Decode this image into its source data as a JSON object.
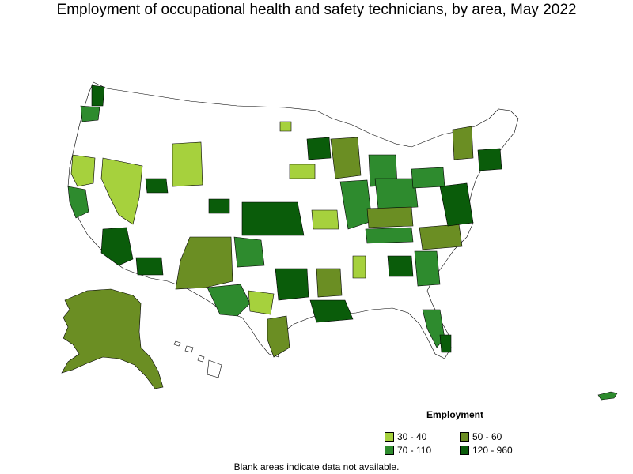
{
  "title": "Employment of occupational health and safety technicians, by area, May 2022",
  "legend": {
    "title": "Employment",
    "items": [
      {
        "label": "30 - 40",
        "color": "#a6d13d"
      },
      {
        "label": "50 - 60",
        "color": "#6b8e23"
      },
      {
        "label": "70 - 110",
        "color": "#2e8b2e"
      },
      {
        "label": "120 - 960",
        "color": "#0a5c0a"
      }
    ]
  },
  "footnote": "Blank areas indicate data not available.",
  "colors": {
    "blank": "#ffffff",
    "border": "#000000"
  }
}
